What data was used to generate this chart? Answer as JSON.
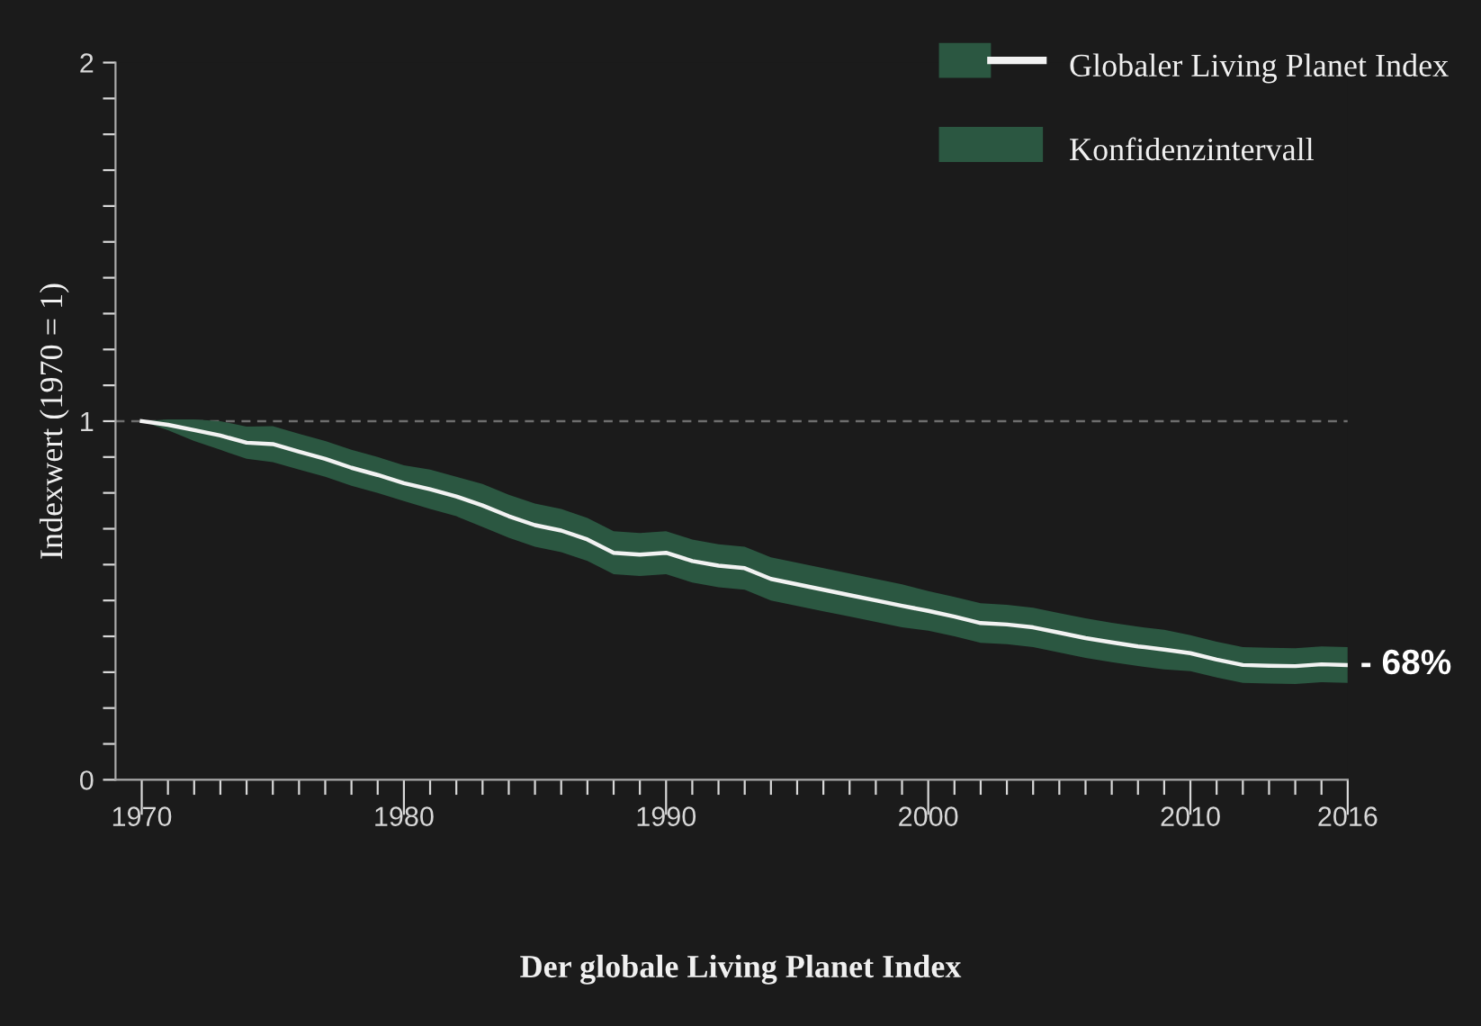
{
  "chart_data": {
    "type": "line",
    "ylabel": "Indexwert (1970 = 1)",
    "x": [
      1970,
      1971,
      1972,
      1973,
      1974,
      1975,
      1976,
      1977,
      1978,
      1979,
      1980,
      1981,
      1982,
      1983,
      1984,
      1985,
      1986,
      1987,
      1988,
      1989,
      1990,
      1991,
      1992,
      1993,
      1994,
      1995,
      1996,
      1997,
      1998,
      1999,
      2000,
      2001,
      2002,
      2003,
      2004,
      2005,
      2006,
      2007,
      2008,
      2009,
      2010,
      2011,
      2012,
      2013,
      2014,
      2015,
      2016
    ],
    "series": [
      {
        "name": "Globaler Living Planet Index",
        "color": "#f2f2f2",
        "lower": [
          1.0,
          0.975,
          0.945,
          0.92,
          0.895,
          0.886,
          0.865,
          0.845,
          0.82,
          0.8,
          0.777,
          0.755,
          0.735,
          0.705,
          0.675,
          0.65,
          0.635,
          0.61,
          0.573,
          0.568,
          0.573,
          0.55,
          0.537,
          0.53,
          0.5,
          0.485,
          0.47,
          0.455,
          0.44,
          0.425,
          0.416,
          0.4,
          0.382,
          0.378,
          0.37,
          0.355,
          0.34,
          0.328,
          0.317,
          0.308,
          0.303,
          0.285,
          0.27,
          0.268,
          0.267,
          0.272,
          0.27
        ],
        "upper": [
          1.0,
          1.005,
          1.005,
          1.0,
          0.985,
          0.986,
          0.965,
          0.945,
          0.92,
          0.9,
          0.877,
          0.865,
          0.845,
          0.825,
          0.795,
          0.77,
          0.755,
          0.73,
          0.693,
          0.688,
          0.693,
          0.67,
          0.657,
          0.65,
          0.62,
          0.605,
          0.59,
          0.575,
          0.56,
          0.545,
          0.526,
          0.51,
          0.492,
          0.488,
          0.48,
          0.465,
          0.45,
          0.438,
          0.427,
          0.418,
          0.403,
          0.385,
          0.37,
          0.368,
          0.367,
          0.372,
          0.37
        ],
        "values": [
          1.0,
          0.99,
          0.975,
          0.96,
          0.94,
          0.936,
          0.915,
          0.895,
          0.87,
          0.85,
          0.827,
          0.81,
          0.79,
          0.765,
          0.735,
          0.71,
          0.695,
          0.67,
          0.633,
          0.628,
          0.633,
          0.61,
          0.597,
          0.59,
          0.56,
          0.545,
          0.53,
          0.515,
          0.5,
          0.485,
          0.471,
          0.455,
          0.437,
          0.433,
          0.425,
          0.41,
          0.395,
          0.383,
          0.372,
          0.363,
          0.353,
          0.335,
          0.32,
          0.318,
          0.317,
          0.322,
          0.32
        ]
      }
    ],
    "xlim": [
      1969,
      2016
    ],
    "ylim": [
      0,
      2
    ],
    "xticks": [
      1970,
      {
        "value": 1971,
        "label": null
      },
      {
        "value": 1972,
        "label": null
      },
      {
        "value": 1973,
        "label": null
      },
      {
        "value": 1974,
        "label": null
      },
      {
        "value": 1975,
        "label": null
      },
      {
        "value": 1976,
        "label": null
      },
      {
        "value": 1977,
        "label": null
      },
      {
        "value": 1978,
        "label": null
      },
      {
        "value": 1979,
        "label": null
      },
      1980,
      {
        "value": 1981,
        "label": null
      },
      {
        "value": 1982,
        "label": null
      },
      {
        "value": 1983,
        "label": null
      },
      {
        "value": 1984,
        "label": null
      },
      {
        "value": 1985,
        "label": null
      },
      {
        "value": 1986,
        "label": null
      },
      {
        "value": 1987,
        "label": null
      },
      {
        "value": 1988,
        "label": null
      },
      {
        "value": 1989,
        "label": null
      },
      1990,
      {
        "value": 1991,
        "label": null
      },
      {
        "value": 1992,
        "label": null
      },
      {
        "value": 1993,
        "label": null
      },
      {
        "value": 1994,
        "label": null
      },
      {
        "value": 1995,
        "label": null
      },
      {
        "value": 1996,
        "label": null
      },
      {
        "value": 1997,
        "label": null
      },
      {
        "value": 1998,
        "label": null
      },
      {
        "value": 1999,
        "label": null
      },
      2000,
      {
        "value": 2001,
        "label": null
      },
      {
        "value": 2002,
        "label": null
      },
      {
        "value": 2003,
        "label": null
      },
      {
        "value": 2004,
        "label": null
      },
      {
        "value": 2005,
        "label": null
      },
      {
        "value": 2006,
        "label": null
      },
      {
        "value": 2007,
        "label": null
      },
      {
        "value": 2008,
        "label": null
      },
      {
        "value": 2009,
        "label": null
      },
      2010,
      {
        "value": 2011,
        "label": null
      },
      {
        "value": 2012,
        "label": null
      },
      {
        "value": 2013,
        "label": null
      },
      {
        "value": 2014,
        "label": null
      },
      {
        "value": 2015,
        "label": null
      },
      2016
    ],
    "yticks": [
      0,
      {
        "value": 0.1,
        "label": null
      },
      {
        "value": 0.2,
        "label": null
      },
      {
        "value": 0.3,
        "label": null
      },
      {
        "value": 0.4,
        "label": null
      },
      {
        "value": 0.5,
        "label": null
      },
      {
        "value": 0.6,
        "label": null
      },
      {
        "value": 0.7,
        "label": null
      },
      {
        "value": 0.8,
        "label": null
      },
      {
        "value": 0.9,
        "label": null
      },
      1,
      {
        "value": 1.1,
        "label": null
      },
      {
        "value": 1.2,
        "label": null
      },
      {
        "value": 1.3,
        "label": null
      },
      {
        "value": 1.4,
        "label": null
      },
      {
        "value": 1.5,
        "label": null
      },
      {
        "value": 1.6,
        "label": null
      },
      {
        "value": 1.7,
        "label": null
      },
      {
        "value": 1.8,
        "label": null
      },
      {
        "value": 1.9,
        "label": null
      },
      2
    ],
    "ref_lines": [
      {
        "axis": "y",
        "value": 1,
        "color": "#6e6e6e",
        "line_style": "dashed"
      }
    ],
    "annotations": [
      {
        "text": "- 68%",
        "x": 2016,
        "y": 0.32
      },
      "Konfidenzintervall",
      "Der globale Living Planet Index"
    ],
    "legend": "top right",
    "grid": false
  }
}
